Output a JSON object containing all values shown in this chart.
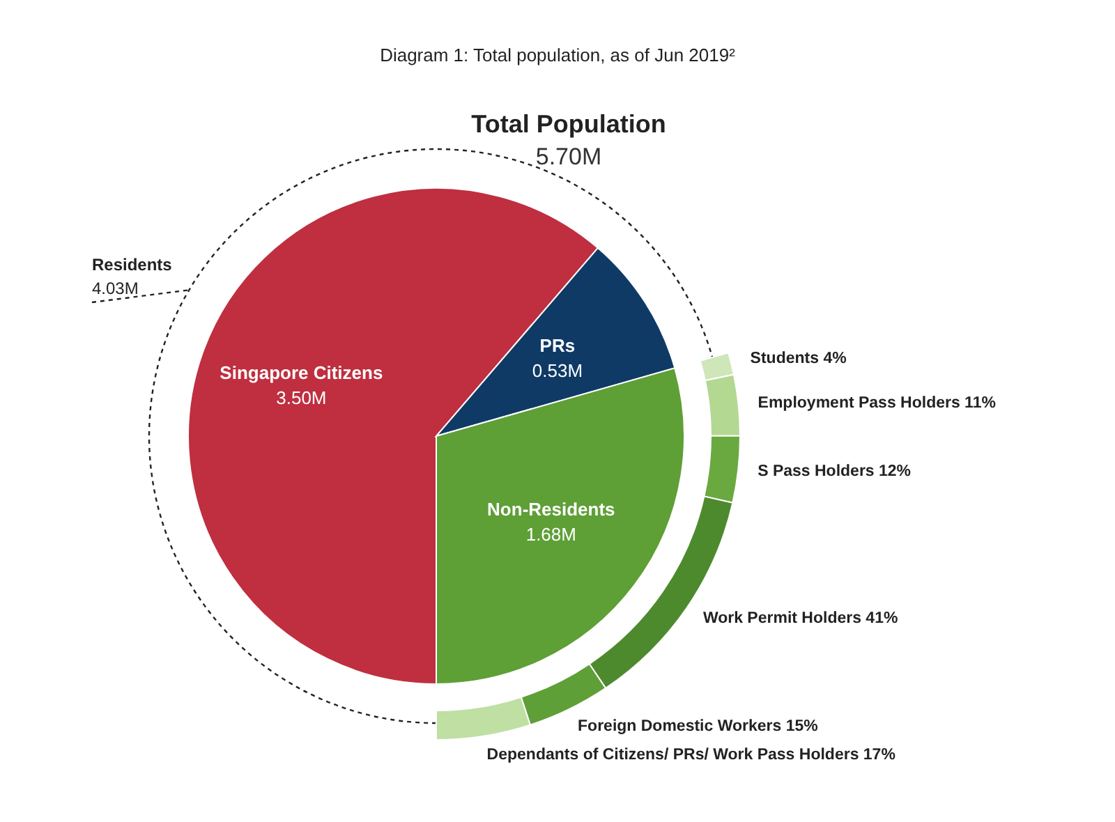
{
  "chart_data": [
    {
      "type": "pie",
      "title": "Total Population",
      "subtitle": "5.70M",
      "categories": [
        "Singapore Citizens",
        "PRs",
        "Non-Residents"
      ],
      "values": [
        3.5,
        0.53,
        1.68
      ],
      "colors": [
        "#bf2f3f",
        "#0f3a66",
        "#5e9f36"
      ],
      "value_labels": [
        "3.50M",
        "0.53M",
        "1.68M"
      ],
      "annotations": [
        "Diagram 1: Total population, as of Jun 2019²",
        "Residents",
        "4.03M"
      ]
    },
    {
      "type": "donut",
      "categories": [
        "Students",
        "Employment Pass Holders",
        "S Pass Holders",
        "Work Permit Holders",
        "Foreign Domestic Workers",
        "Dependants of Citizens/ PRs/ Work Pass Holders"
      ],
      "values": [
        4,
        11,
        12,
        41,
        15,
        17
      ],
      "colors": [
        "#cfe6b8",
        "#b3d892",
        "#6aa940",
        "#4d8a2e",
        "#5f9f38",
        "#c0dfa3"
      ],
      "value_labels": [
        "4%",
        "11%",
        "12%",
        "41%",
        "15%",
        "17%"
      ]
    }
  ]
}
